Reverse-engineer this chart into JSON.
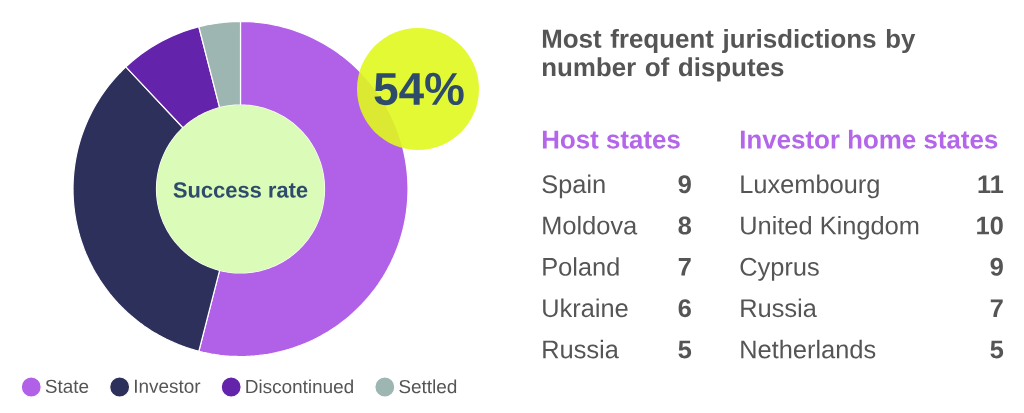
{
  "chart_data": [
    {
      "type": "donut",
      "categories": [
        "State",
        "Investor",
        "Discontinued",
        "Settled"
      ],
      "values": [
        54,
        34,
        8,
        4
      ],
      "colors": [
        "#b161e8",
        "#2e305c",
        "#6423ab",
        "#9eb6b2"
      ],
      "legend": "bottom",
      "annotations": [
        "Success rate",
        "54%"
      ]
    },
    {
      "type": "other",
      "title": "Most frequent jurisdictions by number of disputes"
    },
    {
      "type": "other",
      "title": "Host states",
      "categories": [
        "Spain",
        "Moldova",
        "Poland",
        "Ukraine",
        "Russia"
      ],
      "values": [
        9,
        8,
        7,
        6,
        5
      ],
      "data_labels": true
    },
    {
      "type": "other",
      "title": "Investor home states",
      "categories": [
        "Luxembourg",
        "United Kingdom",
        "Cyprus",
        "Russia",
        "Netherlands"
      ],
      "values": [
        11,
        10,
        9,
        7,
        5
      ],
      "data_labels": true
    }
  ]
}
